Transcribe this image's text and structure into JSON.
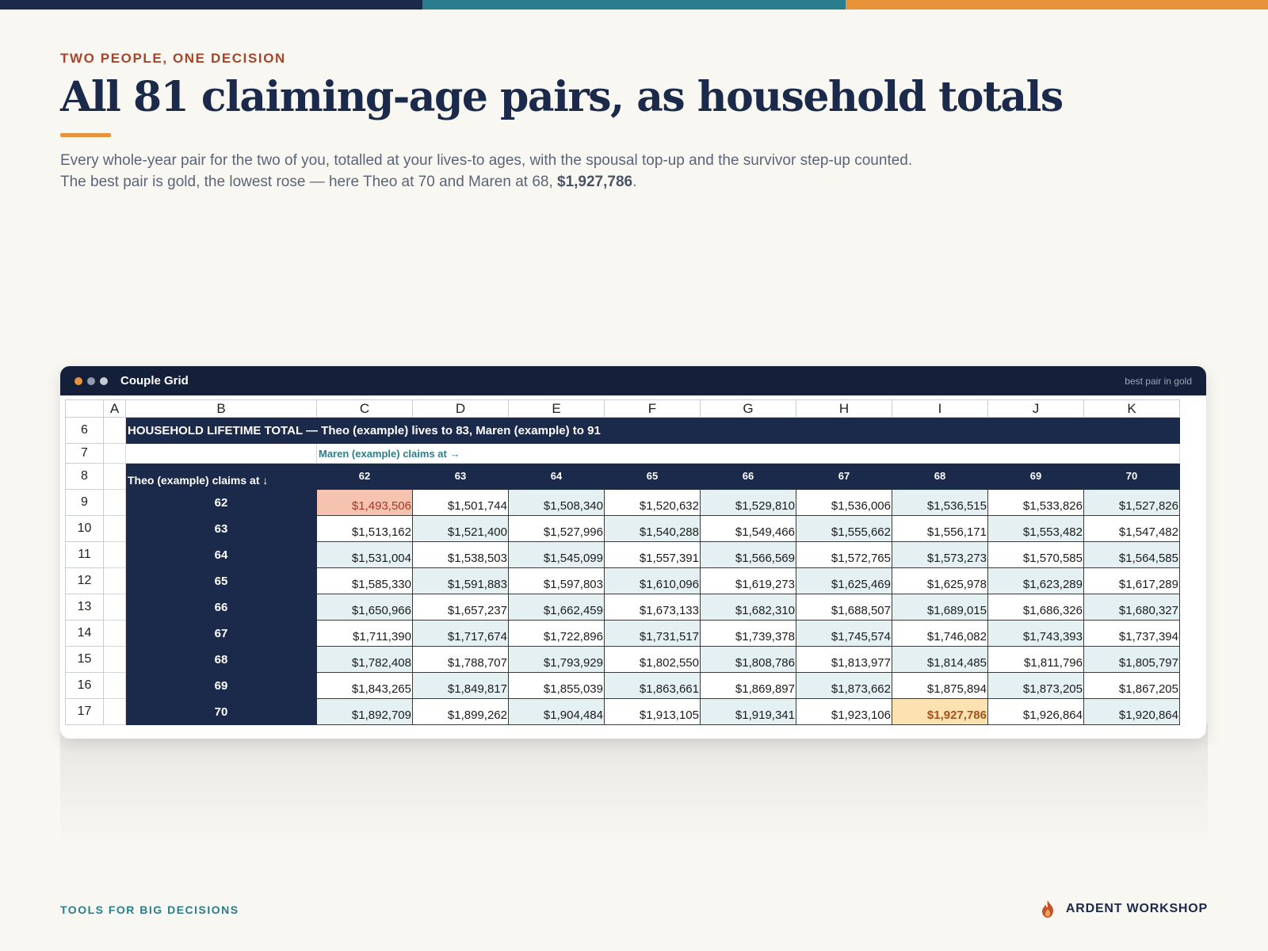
{
  "colors": {
    "navy": "#1b2a4a",
    "teal": "#2a7d8c",
    "orange": "#e8933a",
    "rust": "#a6452a",
    "gold": "#fbe2b0",
    "rose": "#f6c3b1",
    "tint": "#e5f0f2"
  },
  "topbar_colors": [
    "#1b2a4a",
    "#2a7d8c",
    "#e8933a"
  ],
  "eyebrow": "TWO PEOPLE, ONE DECISION",
  "headline": "All 81 claiming-age pairs, as household totals",
  "subtitle_line1": "Every whole-year pair for the two of you, totalled at your lives-to ages, with the spousal top-up and the survivor step-up counted.",
  "subtitle_line2_pre": "The best pair is gold, the lowest rose — here Theo at 70 and Maren at 68, ",
  "subtitle_best_value": "$1,927,786",
  "subtitle_line2_post": ".",
  "window": {
    "title": "Couple Grid",
    "note": "best pair in gold",
    "dots": [
      "#e8933a",
      "#8f9aab",
      "#c5ccd6"
    ]
  },
  "sheet": {
    "col_letters": [
      "A",
      "B",
      "C",
      "D",
      "E",
      "F",
      "G",
      "H",
      "I",
      "J",
      "K"
    ],
    "banner_row": "6",
    "banner_text": "HOUSEHOLD LIFETIME TOTAL  —  Theo (example) lives to 83, Maren (example) to 91",
    "maren_row": "7",
    "maren_label": "Maren (example) claims at →",
    "header_row": "8",
    "theo_label": "Theo (example) claims at ↓",
    "maren_ages": [
      "62",
      "63",
      "64",
      "65",
      "66",
      "67",
      "68",
      "69",
      "70"
    ],
    "rows": [
      {
        "num": "9",
        "age": "62",
        "values": [
          "$1,493,506",
          "$1,501,744",
          "$1,508,340",
          "$1,520,632",
          "$1,529,810",
          "$1,536,006",
          "$1,536,515",
          "$1,533,826",
          "$1,527,826"
        ]
      },
      {
        "num": "10",
        "age": "63",
        "values": [
          "$1,513,162",
          "$1,521,400",
          "$1,527,996",
          "$1,540,288",
          "$1,549,466",
          "$1,555,662",
          "$1,556,171",
          "$1,553,482",
          "$1,547,482"
        ]
      },
      {
        "num": "11",
        "age": "64",
        "values": [
          "$1,531,004",
          "$1,538,503",
          "$1,545,099",
          "$1,557,391",
          "$1,566,569",
          "$1,572,765",
          "$1,573,273",
          "$1,570,585",
          "$1,564,585"
        ]
      },
      {
        "num": "12",
        "age": "65",
        "values": [
          "$1,585,330",
          "$1,591,883",
          "$1,597,803",
          "$1,610,096",
          "$1,619,273",
          "$1,625,469",
          "$1,625,978",
          "$1,623,289",
          "$1,617,289"
        ]
      },
      {
        "num": "13",
        "age": "66",
        "values": [
          "$1,650,966",
          "$1,657,237",
          "$1,662,459",
          "$1,673,133",
          "$1,682,310",
          "$1,688,507",
          "$1,689,015",
          "$1,686,326",
          "$1,680,327"
        ]
      },
      {
        "num": "14",
        "age": "67",
        "values": [
          "$1,711,390",
          "$1,717,674",
          "$1,722,896",
          "$1,731,517",
          "$1,739,378",
          "$1,745,574",
          "$1,746,082",
          "$1,743,393",
          "$1,737,394"
        ]
      },
      {
        "num": "15",
        "age": "68",
        "values": [
          "$1,782,408",
          "$1,788,707",
          "$1,793,929",
          "$1,802,550",
          "$1,808,786",
          "$1,813,977",
          "$1,814,485",
          "$1,811,796",
          "$1,805,797"
        ]
      },
      {
        "num": "16",
        "age": "69",
        "values": [
          "$1,843,265",
          "$1,849,817",
          "$1,855,039",
          "$1,863,661",
          "$1,869,897",
          "$1,873,662",
          "$1,875,894",
          "$1,873,205",
          "$1,867,205"
        ]
      },
      {
        "num": "17",
        "age": "70",
        "values": [
          "$1,892,709",
          "$1,899,262",
          "$1,904,484",
          "$1,913,105",
          "$1,919,341",
          "$1,923,106",
          "$1,927,786",
          "$1,926,864",
          "$1,920,864"
        ]
      }
    ],
    "lowest_cell": {
      "row": 0,
      "col": 0
    },
    "best_cell": {
      "row": 8,
      "col": 6
    }
  },
  "footer": {
    "left": "TOOLS FOR BIG DECISIONS",
    "brand": "ARDENT WORKSHOP",
    "logo_icon": "flame-icon"
  }
}
